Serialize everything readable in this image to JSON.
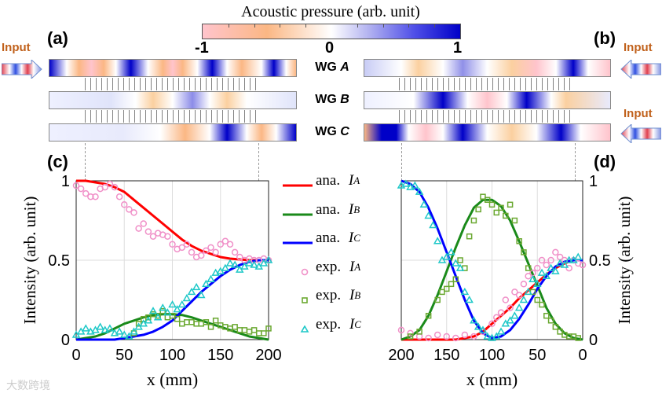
{
  "colorbar": {
    "title": "Acoustic pressure (arb. unit)",
    "min_label": "-1",
    "mid_label": "0",
    "max_label": "1"
  },
  "panels": {
    "a": "(a)",
    "b": "(b)",
    "c": "(c)",
    "d": "(d)"
  },
  "input_label": "Input",
  "waveguides": {
    "A": "WG A",
    "B": "WG B",
    "C": "WG C",
    "prefix": "WG",
    "A_letter": "A",
    "B_letter": "B",
    "C_letter": "C"
  },
  "colors": {
    "ana_A": "#ff0000",
    "ana_B": "#1a8a1a",
    "ana_C": "#0000ff",
    "exp_A": "#f090c8",
    "exp_B": "#6aa830",
    "exp_C": "#1ec8c8",
    "pink": "#ffc4cc",
    "orange": "#fbb784",
    "blue": "#0000c8"
  },
  "legend": [
    {
      "label": "ana. ",
      "sym": "I",
      "sub": "A",
      "kind": "line",
      "color": "#ff0000"
    },
    {
      "label": "ana. ",
      "sym": "I",
      "sub": "B",
      "kind": "line",
      "color": "#1a8a1a"
    },
    {
      "label": "ana. ",
      "sym": "I",
      "sub": "C",
      "kind": "line",
      "color": "#0000ff"
    },
    {
      "label": "exp. ",
      "sym": "I",
      "sub": "A",
      "kind": "circle",
      "color": "#f090c8"
    },
    {
      "label": "exp. ",
      "sym": "I",
      "sub": "B",
      "kind": "square",
      "color": "#6aa830"
    },
    {
      "label": "exp. ",
      "sym": "I",
      "sub": "C",
      "kind": "triangle",
      "color": "#1ec8c8"
    }
  ],
  "watermark": "大数跨境",
  "chart_data": [
    {
      "type": "line",
      "panel": "(c)",
      "xlabel": "x (mm)",
      "ylabel": "Intensity (arb. unit)",
      "xlim": [
        0,
        200
      ],
      "ylim": [
        0,
        1
      ],
      "x_reversed": false,
      "grid": true,
      "xticks": [
        "0",
        "50",
        "100",
        "150",
        "200"
      ],
      "yticks": [
        "0",
        "0.5",
        "1"
      ],
      "x": [
        0,
        10,
        20,
        30,
        40,
        50,
        60,
        70,
        80,
        90,
        100,
        110,
        120,
        130,
        140,
        150,
        160,
        170,
        180,
        190,
        200
      ],
      "series": [
        {
          "name": "ana. I_A",
          "values": [
            1,
            1,
            0.99,
            0.98,
            0.96,
            0.93,
            0.88,
            0.83,
            0.78,
            0.73,
            0.68,
            0.63,
            0.59,
            0.56,
            0.54,
            0.52,
            0.51,
            0.505,
            0.5,
            0.5,
            0.5
          ]
        },
        {
          "name": "ana. I_B",
          "values": [
            0,
            0.01,
            0.02,
            0.04,
            0.07,
            0.1,
            0.12,
            0.14,
            0.155,
            0.16,
            0.16,
            0.155,
            0.14,
            0.12,
            0.1,
            0.08,
            0.06,
            0.04,
            0.02,
            0.01,
            0
          ]
        },
        {
          "name": "ana. I_C",
          "values": [
            0,
            0,
            0,
            0,
            0,
            0.01,
            0.02,
            0.03,
            0.05,
            0.08,
            0.12,
            0.18,
            0.24,
            0.3,
            0.35,
            0.4,
            0.44,
            0.47,
            0.49,
            0.5,
            0.5
          ]
        }
      ],
      "points": [
        {
          "name": "exp. I_A",
          "x": [
            0,
            5,
            10,
            15,
            20,
            25,
            30,
            35,
            40,
            45,
            50,
            55,
            60,
            65,
            70,
            75,
            80,
            85,
            90,
            95,
            100,
            105,
            110,
            115,
            120,
            125,
            130,
            135,
            140,
            145,
            150,
            155,
            160,
            165,
            170,
            175,
            180,
            185,
            190,
            195,
            200
          ],
          "values": [
            0.97,
            0.95,
            0.92,
            0.9,
            0.9,
            0.95,
            0.96,
            0.98,
            0.96,
            0.9,
            0.85,
            0.82,
            0.8,
            0.7,
            0.73,
            0.68,
            0.65,
            0.67,
            0.66,
            0.65,
            0.6,
            0.57,
            0.58,
            0.6,
            0.55,
            0.52,
            0.53,
            0.56,
            0.58,
            0.55,
            0.6,
            0.62,
            0.6,
            0.55,
            0.52,
            0.5,
            0.51,
            0.5,
            0.5,
            0.51,
            0.5
          ]
        },
        {
          "name": "exp. I_B",
          "x": [
            60,
            65,
            70,
            75,
            80,
            85,
            90,
            95,
            100,
            105,
            110,
            115,
            120,
            125,
            130,
            135,
            140,
            145,
            150,
            155,
            160,
            165,
            170,
            175,
            180,
            185,
            190,
            195,
            200
          ],
          "values": [
            0.04,
            0.1,
            0.13,
            0.14,
            0.16,
            0.15,
            0.18,
            0.14,
            0.15,
            0.13,
            0.1,
            0.11,
            0.11,
            0.1,
            0.1,
            0.11,
            0.08,
            0.12,
            0.09,
            0.08,
            0.07,
            0.08,
            0.06,
            0.06,
            0.05,
            0.06,
            0.04,
            0.04,
            0.07
          ]
        },
        {
          "name": "exp. I_C",
          "x": [
            0,
            5,
            10,
            15,
            20,
            25,
            30,
            35,
            40,
            45,
            50,
            55,
            60,
            65,
            70,
            75,
            80,
            85,
            90,
            95,
            100,
            105,
            110,
            115,
            120,
            125,
            130,
            135,
            140,
            145,
            150,
            155,
            160,
            165,
            170,
            175,
            180,
            185,
            190,
            195,
            200
          ],
          "values": [
            0.03,
            0.05,
            0.07,
            0.05,
            0.06,
            0.08,
            0.06,
            0.07,
            0.04,
            0.05,
            0.03,
            0.02,
            0.05,
            0.08,
            0.1,
            0.12,
            0.18,
            0.14,
            0.2,
            0.17,
            0.22,
            0.19,
            0.22,
            0.26,
            0.3,
            0.33,
            0.28,
            0.35,
            0.38,
            0.42,
            0.43,
            0.45,
            0.48,
            0.47,
            0.44,
            0.46,
            0.48,
            0.47,
            0.46,
            0.48,
            0.5
          ]
        }
      ]
    },
    {
      "type": "line",
      "panel": "(d)",
      "xlabel": "x (mm)",
      "ylabel": "Intensity (arb. unit)",
      "xlim": [
        200,
        0
      ],
      "ylim": [
        0,
        1
      ],
      "x_reversed": true,
      "grid": true,
      "xticks": [
        "200",
        "150",
        "100",
        "50",
        "0"
      ],
      "yticks": [
        "0",
        "0.5",
        "1"
      ],
      "x": [
        200,
        190,
        180,
        170,
        160,
        150,
        140,
        130,
        120,
        110,
        100,
        90,
        80,
        70,
        60,
        50,
        40,
        30,
        20,
        10,
        0
      ],
      "series": [
        {
          "name": "ana. I_A",
          "values": [
            0,
            0,
            0,
            0,
            0,
            0,
            0,
            0.01,
            0.02,
            0.05,
            0.1,
            0.15,
            0.2,
            0.26,
            0.31,
            0.36,
            0.41,
            0.45,
            0.48,
            0.5,
            0.5
          ]
        },
        {
          "name": "ana. I_B",
          "values": [
            0,
            0.02,
            0.06,
            0.15,
            0.28,
            0.43,
            0.58,
            0.72,
            0.83,
            0.88,
            0.88,
            0.84,
            0.75,
            0.62,
            0.48,
            0.34,
            0.2,
            0.1,
            0.04,
            0.01,
            0
          ]
        },
        {
          "name": "ana. I_C",
          "values": [
            1,
            0.98,
            0.93,
            0.83,
            0.7,
            0.55,
            0.4,
            0.25,
            0.12,
            0.04,
            0.01,
            0.02,
            0.06,
            0.13,
            0.22,
            0.32,
            0.4,
            0.46,
            0.49,
            0.5,
            0.5
          ]
        }
      ],
      "points": [
        {
          "name": "exp. I_A",
          "x": [
            200,
            190,
            180,
            170,
            160,
            150,
            140,
            130,
            120,
            110,
            100,
            95,
            90,
            85,
            80,
            75,
            70,
            65,
            60,
            55,
            50,
            45,
            40,
            35,
            30,
            25,
            20,
            15,
            10,
            5,
            0
          ],
          "values": [
            0.06,
            0.04,
            0.02,
            0.01,
            0.03,
            0.02,
            0.01,
            0.03,
            0.02,
            0.05,
            0.1,
            0.14,
            0.17,
            0.25,
            0.2,
            0.3,
            0.28,
            0.35,
            0.4,
            0.42,
            0.45,
            0.5,
            0.47,
            0.5,
            0.55,
            0.52,
            0.5,
            0.45,
            0.5,
            0.48,
            0.47
          ]
        },
        {
          "name": "exp. I_B",
          "x": [
            190,
            180,
            170,
            160,
            155,
            150,
            145,
            140,
            135,
            130,
            125,
            120,
            115,
            110,
            105,
            100,
            95,
            90,
            85,
            80,
            75,
            70,
            65,
            60,
            55,
            50,
            45,
            40,
            35,
            30,
            25,
            20,
            15,
            10,
            5
          ],
          "values": [
            0.02,
            0.05,
            0.15,
            0.25,
            0.3,
            0.32,
            0.35,
            0.38,
            0.5,
            0.45,
            0.65,
            0.75,
            0.82,
            0.9,
            0.88,
            0.85,
            0.8,
            0.83,
            0.78,
            0.85,
            0.75,
            0.62,
            0.55,
            0.45,
            0.3,
            0.25,
            0.22,
            0.15,
            0.12,
            0.08,
            0.05,
            0.03,
            0.02,
            0.02,
            0.01
          ]
        },
        {
          "name": "exp. I_C",
          "x": [
            200,
            195,
            190,
            185,
            180,
            175,
            170,
            165,
            160,
            155,
            150,
            145,
            140,
            135,
            130,
            125,
            120,
            115,
            110,
            105,
            100,
            95,
            90,
            85,
            80,
            75,
            70,
            65,
            60,
            55,
            50,
            45,
            40,
            35,
            30,
            25,
            20,
            15,
            10,
            5
          ],
          "values": [
            0.97,
            0.98,
            0.96,
            0.97,
            0.93,
            0.85,
            0.78,
            0.72,
            0.62,
            0.5,
            0.52,
            0.55,
            0.48,
            0.45,
            0.3,
            0.25,
            0.12,
            0.08,
            0.06,
            0.02,
            0.01,
            0.02,
            0.05,
            0.1,
            0.12,
            0.15,
            0.2,
            0.25,
            0.3,
            0.38,
            0.35,
            0.42,
            0.4,
            0.45,
            0.43,
            0.48,
            0.47,
            0.5,
            0.5,
            0.52
          ]
        }
      ]
    }
  ]
}
